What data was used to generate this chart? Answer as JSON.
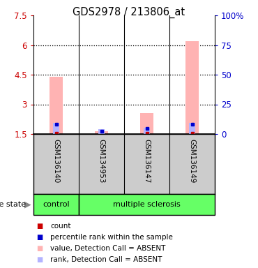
{
  "title": "GDS2978 / 213806_at",
  "samples": [
    "GSM136140",
    "GSM134953",
    "GSM136147",
    "GSM136149"
  ],
  "ylim_left": [
    1.5,
    7.5
  ],
  "ylim_right": [
    0,
    100
  ],
  "yticks_left": [
    1.5,
    3.0,
    4.5,
    6.0,
    7.5
  ],
  "ytick_labels_left": [
    "1.5",
    "3",
    "4.5",
    "6",
    "7.5"
  ],
  "yticks_right": [
    0,
    25,
    50,
    75,
    100
  ],
  "ytick_labels_right": [
    "0",
    "25",
    "50",
    "75",
    "100%"
  ],
  "bar_value_color": "#ffb3b3",
  "bar_rank_color": "#b3b3ff",
  "bar_red_color": "#cc0000",
  "bar_blue_color": "#0000cc",
  "value_bars": [
    4.4,
    1.63,
    2.55,
    6.2
  ],
  "rank_bars": [
    2.08,
    1.73,
    1.83,
    2.08
  ],
  "bg_color": "#ffffff",
  "plot_bg": "#ffffff",
  "grid_color": "#000000",
  "left_tick_color": "#cc0000",
  "right_tick_color": "#0000cc",
  "sample_bg_color": "#cccccc",
  "control_bg": "#66ff66",
  "ms_bg": "#66ff66",
  "legend_items": [
    {
      "label": "count",
      "color": "#cc0000"
    },
    {
      "label": "percentile rank within the sample",
      "color": "#0000cc"
    },
    {
      "label": "value, Detection Call = ABSENT",
      "color": "#ffb3b3"
    },
    {
      "label": "rank, Detection Call = ABSENT",
      "color": "#b3b3ff"
    }
  ],
  "grid_yticks": [
    3.0,
    4.5,
    6.0
  ]
}
